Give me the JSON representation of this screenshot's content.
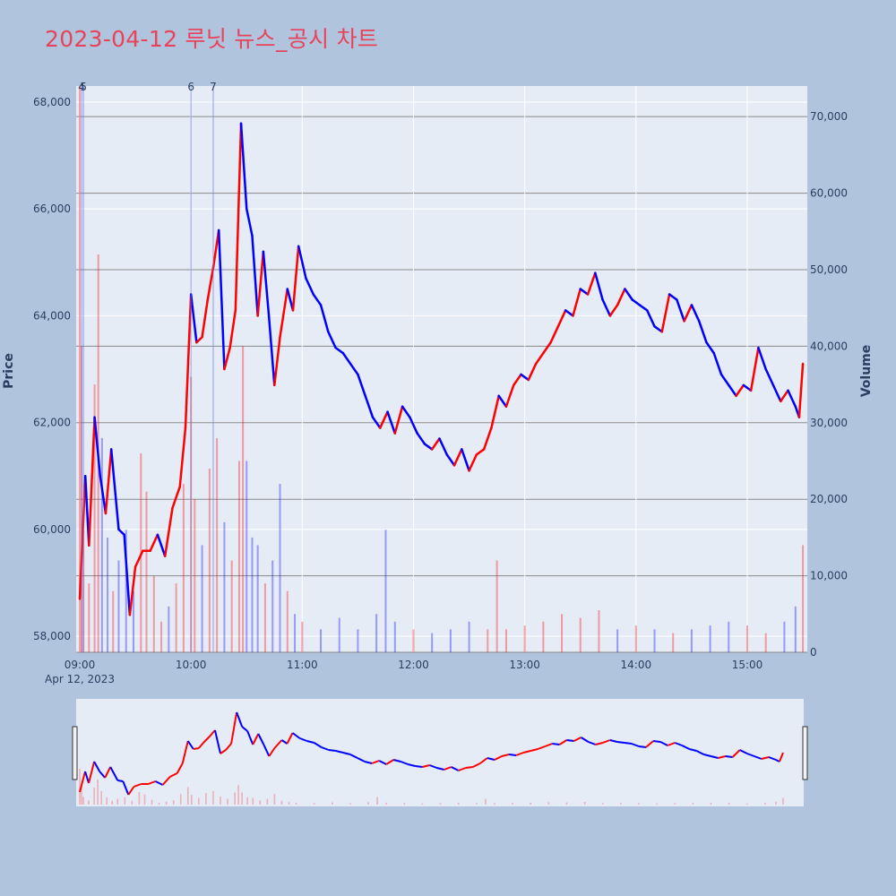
{
  "title": "2023-04-12 루닛 뉴스_공시 차트",
  "axes": {
    "y_left_title": "Price",
    "y_right_title": "Volume",
    "x_date_label": "Apr 12, 2023",
    "x_ticks": [
      "09:00",
      "10:00",
      "11:00",
      "12:00",
      "13:00",
      "14:00",
      "15:00"
    ],
    "y_left_ticks": [
      "58,000",
      "60,000",
      "62,000",
      "64,000",
      "66,000",
      "68,000"
    ],
    "y_right_ticks": [
      "0",
      "10,000",
      "20,000",
      "30,000",
      "40,000",
      "50,000",
      "60,000",
      "70,000"
    ]
  },
  "colors": {
    "up": "#ff0000",
    "down": "#0000ff",
    "plot_bg": "#e5ecf6",
    "page_bg": "#b0c4de",
    "title": "#e8435a"
  },
  "markers": [
    {
      "label": "4",
      "time": "09:01"
    },
    {
      "label": "5",
      "time": "09:02"
    },
    {
      "label": "6",
      "time": "10:00"
    },
    {
      "label": "7",
      "time": "10:12"
    }
  ],
  "chart_data": {
    "type": "line",
    "x_range": [
      "09:00",
      "15:30"
    ],
    "ylim_price": [
      57700,
      68300
    ],
    "ylim_volume": [
      0,
      74000
    ],
    "price_points": [
      [
        "09:00",
        58700
      ],
      [
        "09:03",
        61000
      ],
      [
        "09:05",
        59700
      ],
      [
        "09:08",
        62100
      ],
      [
        "09:11",
        61000
      ],
      [
        "09:14",
        60300
      ],
      [
        "09:17",
        61500
      ],
      [
        "09:21",
        60000
      ],
      [
        "09:24",
        59900
      ],
      [
        "09:27",
        58400
      ],
      [
        "09:30",
        59300
      ],
      [
        "09:34",
        59600
      ],
      [
        "09:38",
        59600
      ],
      [
        "09:42",
        59900
      ],
      [
        "09:46",
        59500
      ],
      [
        "09:50",
        60400
      ],
      [
        "09:54",
        60800
      ],
      [
        "09:57",
        61900
      ],
      [
        "10:00",
        64400
      ],
      [
        "10:03",
        63500
      ],
      [
        "10:06",
        63600
      ],
      [
        "10:09",
        64300
      ],
      [
        "10:12",
        64900
      ],
      [
        "10:15",
        65600
      ],
      [
        "10:18",
        63000
      ],
      [
        "10:21",
        63400
      ],
      [
        "10:24",
        64100
      ],
      [
        "10:27",
        67600
      ],
      [
        "10:30",
        66000
      ],
      [
        "10:33",
        65500
      ],
      [
        "10:36",
        64000
      ],
      [
        "10:39",
        65200
      ],
      [
        "10:42",
        64000
      ],
      [
        "10:45",
        62700
      ],
      [
        "10:48",
        63600
      ],
      [
        "10:52",
        64500
      ],
      [
        "10:55",
        64100
      ],
      [
        "10:58",
        65300
      ],
      [
        "11:02",
        64700
      ],
      [
        "11:06",
        64400
      ],
      [
        "11:10",
        64200
      ],
      [
        "11:14",
        63700
      ],
      [
        "11:18",
        63400
      ],
      [
        "11:22",
        63300
      ],
      [
        "11:26",
        63100
      ],
      [
        "11:30",
        62900
      ],
      [
        "11:34",
        62500
      ],
      [
        "11:38",
        62100
      ],
      [
        "11:42",
        61900
      ],
      [
        "11:46",
        62200
      ],
      [
        "11:50",
        61800
      ],
      [
        "11:54",
        62300
      ],
      [
        "11:58",
        62100
      ],
      [
        "12:02",
        61800
      ],
      [
        "12:06",
        61600
      ],
      [
        "12:10",
        61500
      ],
      [
        "12:14",
        61700
      ],
      [
        "12:18",
        61400
      ],
      [
        "12:22",
        61200
      ],
      [
        "12:26",
        61500
      ],
      [
        "12:30",
        61100
      ],
      [
        "12:34",
        61400
      ],
      [
        "12:38",
        61500
      ],
      [
        "12:42",
        61900
      ],
      [
        "12:46",
        62500
      ],
      [
        "12:50",
        62300
      ],
      [
        "12:54",
        62700
      ],
      [
        "12:58",
        62900
      ],
      [
        "13:02",
        62800
      ],
      [
        "13:06",
        63100
      ],
      [
        "13:10",
        63300
      ],
      [
        "13:14",
        63500
      ],
      [
        "13:18",
        63800
      ],
      [
        "13:22",
        64100
      ],
      [
        "13:26",
        64000
      ],
      [
        "13:30",
        64500
      ],
      [
        "13:34",
        64400
      ],
      [
        "13:38",
        64800
      ],
      [
        "13:42",
        64300
      ],
      [
        "13:46",
        64000
      ],
      [
        "13:50",
        64200
      ],
      [
        "13:54",
        64500
      ],
      [
        "13:58",
        64300
      ],
      [
        "14:02",
        64200
      ],
      [
        "14:06",
        64100
      ],
      [
        "14:10",
        63800
      ],
      [
        "14:14",
        63700
      ],
      [
        "14:18",
        64400
      ],
      [
        "14:22",
        64300
      ],
      [
        "14:26",
        63900
      ],
      [
        "14:30",
        64200
      ],
      [
        "14:34",
        63900
      ],
      [
        "14:38",
        63500
      ],
      [
        "14:42",
        63300
      ],
      [
        "14:46",
        62900
      ],
      [
        "14:50",
        62700
      ],
      [
        "14:54",
        62500
      ],
      [
        "14:58",
        62700
      ],
      [
        "15:02",
        62600
      ],
      [
        "15:06",
        63400
      ],
      [
        "15:10",
        63000
      ],
      [
        "15:14",
        62700
      ],
      [
        "15:18",
        62400
      ],
      [
        "15:22",
        62600
      ],
      [
        "15:26",
        62300
      ],
      [
        "15:28",
        62100
      ],
      [
        "15:30",
        63100
      ]
    ],
    "volume_bars": [
      [
        "09:00",
        74000
      ],
      [
        "09:01",
        40000
      ],
      [
        "09:02",
        16000
      ],
      [
        "09:05",
        9000
      ],
      [
        "09:08",
        35000
      ],
      [
        "09:10",
        52000
      ],
      [
        "09:12",
        28000
      ],
      [
        "09:15",
        15000
      ],
      [
        "09:18",
        8000
      ],
      [
        "09:21",
        12000
      ],
      [
        "09:25",
        16000
      ],
      [
        "09:29",
        8000
      ],
      [
        "09:33",
        26000
      ],
      [
        "09:36",
        21000
      ],
      [
        "09:40",
        10000
      ],
      [
        "09:44",
        4000
      ],
      [
        "09:48",
        6000
      ],
      [
        "09:52",
        9000
      ],
      [
        "09:56",
        22000
      ],
      [
        "10:00",
        36000
      ],
      [
        "10:02",
        20000
      ],
      [
        "10:06",
        14000
      ],
      [
        "10:10",
        24000
      ],
      [
        "10:14",
        28000
      ],
      [
        "10:18",
        17000
      ],
      [
        "10:22",
        12000
      ],
      [
        "10:26",
        25000
      ],
      [
        "10:28",
        40000
      ],
      [
        "10:30",
        25000
      ],
      [
        "10:33",
        15000
      ],
      [
        "10:36",
        14000
      ],
      [
        "10:40",
        9000
      ],
      [
        "10:44",
        12000
      ],
      [
        "10:48",
        22000
      ],
      [
        "10:52",
        8000
      ],
      [
        "10:56",
        5000
      ],
      [
        "11:00",
        4000
      ],
      [
        "11:10",
        3000
      ],
      [
        "11:20",
        4500
      ],
      [
        "11:30",
        3000
      ],
      [
        "11:40",
        5000
      ],
      [
        "11:45",
        16000
      ],
      [
        "11:50",
        4000
      ],
      [
        "12:00",
        3000
      ],
      [
        "12:10",
        2500
      ],
      [
        "12:20",
        3000
      ],
      [
        "12:30",
        4000
      ],
      [
        "12:40",
        3000
      ],
      [
        "12:45",
        12000
      ],
      [
        "12:50",
        3000
      ],
      [
        "13:00",
        3500
      ],
      [
        "13:10",
        4000
      ],
      [
        "13:20",
        5000
      ],
      [
        "13:30",
        4500
      ],
      [
        "13:40",
        5500
      ],
      [
        "13:50",
        3000
      ],
      [
        "14:00",
        3500
      ],
      [
        "14:10",
        3000
      ],
      [
        "14:20",
        2500
      ],
      [
        "14:30",
        3000
      ],
      [
        "14:40",
        3500
      ],
      [
        "14:50",
        4000
      ],
      [
        "15:00",
        3500
      ],
      [
        "15:10",
        2500
      ],
      [
        "15:20",
        4000
      ],
      [
        "15:26",
        6000
      ],
      [
        "15:30",
        14000
      ]
    ]
  }
}
